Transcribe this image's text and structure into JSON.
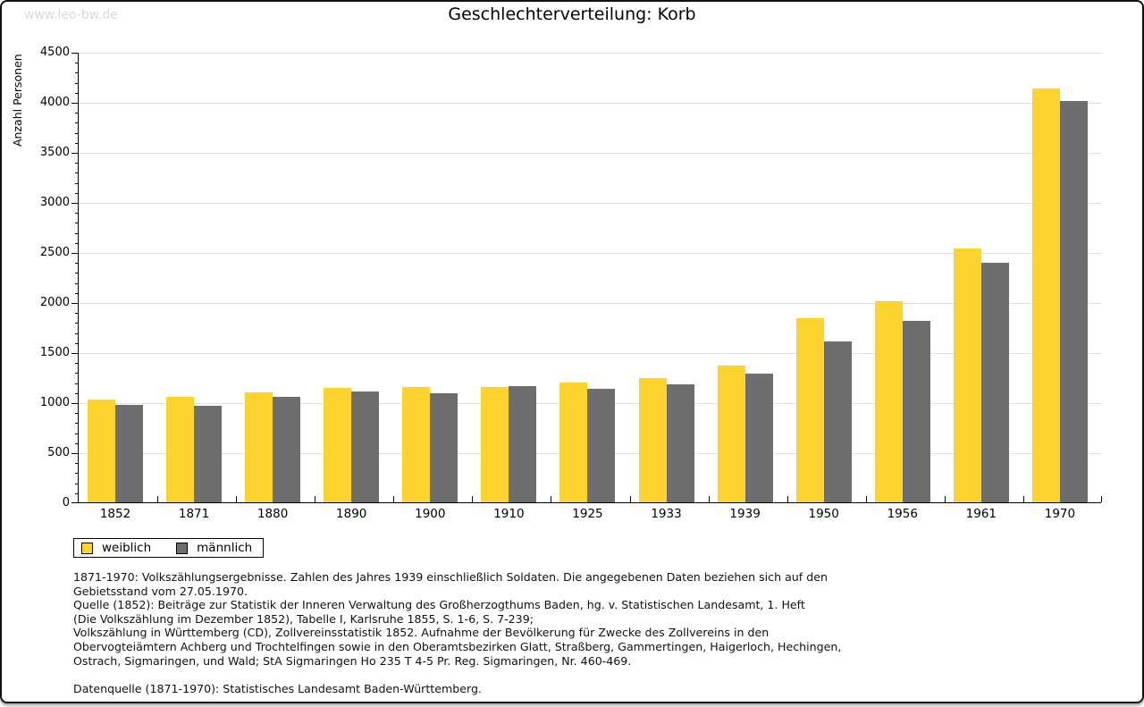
{
  "page": {
    "watermark": "www.leo-bw.de",
    "title": "Geschlechterverteilung: Korb"
  },
  "chart_data": {
    "type": "bar",
    "title": "Geschlechterverteilung: Korb",
    "xlabel": "",
    "ylabel": "Anzahl Personen",
    "ylim": [
      0,
      4500
    ],
    "y_major_step": 500,
    "y_minor_step": 100,
    "grid": true,
    "legend_position": "bottom-left",
    "categories": [
      "1852",
      "1871",
      "1880",
      "1890",
      "1900",
      "1910",
      "1925",
      "1933",
      "1939",
      "1950",
      "1956",
      "1961",
      "1970"
    ],
    "series": [
      {
        "name": "weiblich",
        "color": "#FDD32D",
        "values": [
          1030,
          1055,
          1100,
          1140,
          1155,
          1155,
          1195,
          1245,
          1370,
          1840,
          2010,
          2540,
          4130
        ]
      },
      {
        "name": "männlich",
        "color": "#6E6E6E",
        "values": [
          975,
          965,
          1050,
          1110,
          1090,
          1165,
          1130,
          1175,
          1290,
          1610,
          1810,
          2390,
          4010
        ]
      }
    ]
  },
  "footer": {
    "lines": [
      "1871-1970: Volkszählungsergebnisse. Zahlen des Jahres 1939 einschließlich Soldaten. Die angegebenen Daten beziehen sich auf den",
      "Gebietsstand vom 27.05.1970.",
      "Quelle (1852): Beiträge zur Statistik der Inneren Verwaltung des Großherzogthums Baden, hg. v. Statistischen Landesamt, 1. Heft",
      "(Die Volkszählung im Dezember 1852), Tabelle I, Karlsruhe 1855, S. 1-6, S. 7-239;",
      "Volkszählung in Württemberg (CD), Zollvereinsstatistik 1852. Aufnahme der Bevölkerung für Zwecke des Zollvereins in den",
      "Obervogteiämtern Achberg und Trochtelfingen sowie in den Oberamtsbezirken Glatt, Straßberg, Gammertingen, Haigerloch, Hechingen,",
      "Ostrach, Sigmaringen, und Wald; StA Sigmaringen Ho 235 T 4-5 Pr. Reg. Sigmaringen, Nr. 460-469.",
      "",
      "Datenquelle (1871-1970): Statistisches Landesamt Baden-Württemberg."
    ]
  }
}
